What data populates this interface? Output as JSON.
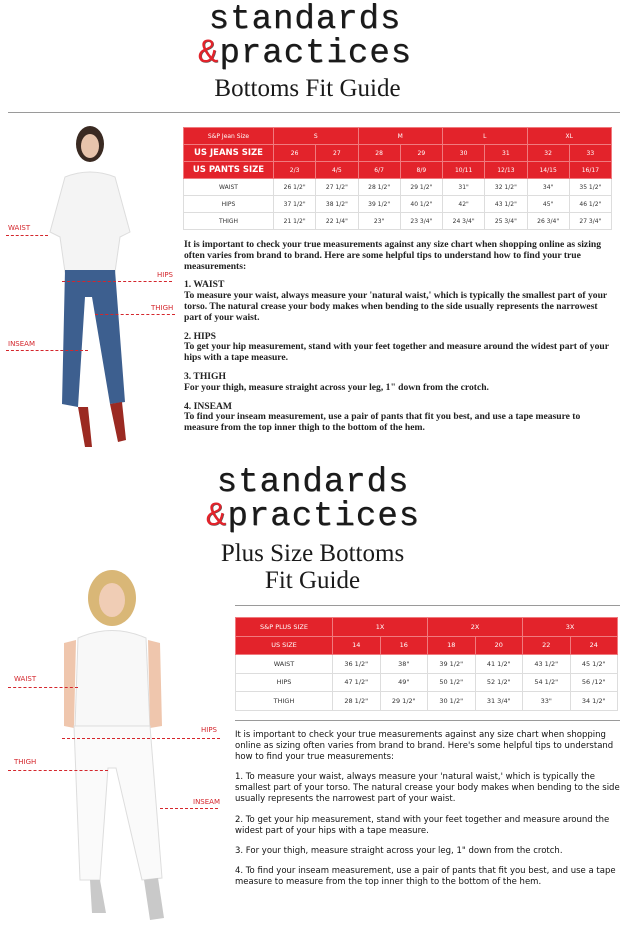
{
  "logo": {
    "line1": "standards",
    "amp": "&",
    "line2": "practices"
  },
  "section1": {
    "title": "Bottoms Fit Guide",
    "table": {
      "header": "S&P Jean Size",
      "groups": [
        "S",
        "M",
        "L",
        "XL"
      ],
      "jeans_label": "US JEANS SIZE",
      "jeans": [
        "26",
        "27",
        "28",
        "29",
        "30",
        "31",
        "32",
        "33"
      ],
      "pants_label": "US PANTS SIZE",
      "pants": [
        "2/3",
        "4/5",
        "6/7",
        "8/9",
        "10/11",
        "12/13",
        "14/15",
        "16/17"
      ],
      "rows": [
        {
          "label": "WAIST",
          "values": [
            "26 1/2\"",
            "27 1/2\"",
            "28 1/2\"",
            "29 1/2\"",
            "31\"",
            "32 1/2\"",
            "34\"",
            "35 1/2\""
          ]
        },
        {
          "label": "HIPS",
          "values": [
            "37 1/2\"",
            "38 1/2\"",
            "39 1/2\"",
            "40 1/2\"",
            "42\"",
            "43 1/2\"",
            "45\"",
            "46 1/2\""
          ]
        },
        {
          "label": "THIGH",
          "values": [
            "21 1/2\"",
            "22 1/4\"",
            "23\"",
            "23 3/4\"",
            "24 3/4\"",
            "25 3/4\"",
            "26 3/4\"",
            "27 3/4\""
          ]
        }
      ]
    },
    "intro": "It is important to check your true measurements against any size chart when shopping online as sizing often varies from brand to brand. Here are some helpful tips to understand how to find your true measurements:",
    "tips": [
      {
        "heading": "1. WAIST",
        "text": "To measure your waist, always measure your 'natural waist,' which is typically the smallest part of your torso.  The natural crease your body makes when bending to the side usually represents the narrowest part of your waist."
      },
      {
        "heading": "2. HIPS",
        "text": "To get your hip measurement, stand with your feet together and measure around the widest part of your hips with a tape measure."
      },
      {
        "heading": "3. THIGH",
        "text": " For your thigh, measure straight across your leg, 1\" down from the crotch."
      },
      {
        "heading": "4. INSEAM",
        "text": "To find your inseam measurement, use a pair of pants that fit you best, and use a tape measure to measure from the top inner thigh to the bottom of the hem."
      }
    ],
    "figure_labels": {
      "waist": "WAIST",
      "hips": "HIPS",
      "thigh": "THIGH",
      "inseam": "INSEAM"
    }
  },
  "section2": {
    "title1": "Plus Size Bottoms",
    "title2": "Fit Guide",
    "table": {
      "header": "S&P PLUS SIZE",
      "groups": [
        "1X",
        "2X",
        "3X"
      ],
      "us_label": "US SIZE",
      "us": [
        "14",
        "16",
        "18",
        "20",
        "22",
        "24"
      ],
      "rows": [
        {
          "label": "WAIST",
          "values": [
            "36 1/2\"",
            "38\"",
            "39 1/2\"",
            "41 1/2\"",
            "43 1/2\"",
            "45 1/2\""
          ]
        },
        {
          "label": "HIPS",
          "values": [
            "47 1/2\"",
            "49\"",
            "50 1/2\"",
            "52 1/2\"",
            "54 1/2\"",
            "56 /12\""
          ]
        },
        {
          "label": "THIGH",
          "values": [
            "28 1/2\"",
            "29 1/2\"",
            "30 1/2\"",
            "31 3/4\"",
            "33\"",
            "34 1/2\""
          ]
        }
      ]
    },
    "intro": "It is important to check your true measurements against any size chart when shopping online as sizing often varies from brand to brand. Here's some helpful tips to understand how to find your true measurements:",
    "tips": [
      "1. To measure your waist, always measure your  'natural waist,'  which is typically the smallest part of your torso.  The natural crease your body makes when bending to the side usually represents the narrowest part of your waist.",
      "2. To get your hip measurement, stand with your feet together and measure around the widest part of your hips with a tape measure.",
      "3. For your thigh, measure straight across your leg, 1\"  down from the crotch.",
      "4. To find your inseam measurement, use a pair of pants that fit you best, and use a tape measure to measure from the top inner thigh to the bottom of the hem."
    ],
    "figure_labels": {
      "waist": "WAIST",
      "hips": "HIPS",
      "thigh": "THIGH",
      "inseam": "INSEAM"
    }
  },
  "colors": {
    "accent": "#e3232b"
  }
}
